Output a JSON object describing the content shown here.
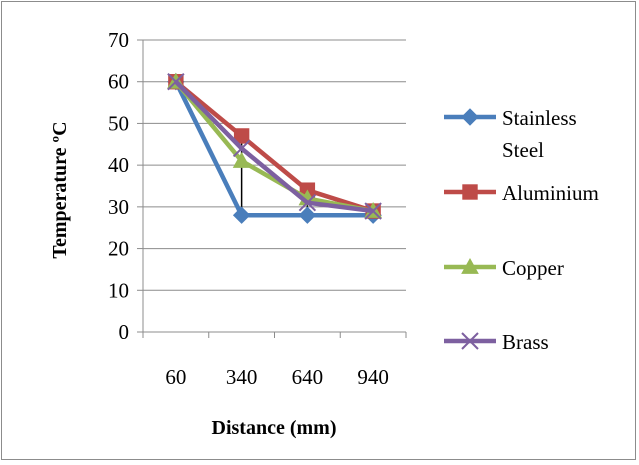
{
  "chart_data": {
    "type": "line",
    "title": "",
    "xlabel": "Distance (mm)",
    "ylabel": "Temperature",
    "ylabel_unit": "ºC",
    "categories": [
      "60",
      "340",
      "640",
      "940"
    ],
    "ylim": [
      0,
      70
    ],
    "yticks": [
      0,
      10,
      20,
      30,
      40,
      50,
      60,
      70
    ],
    "grid": "horizontal",
    "legend_position": "right",
    "series": [
      {
        "name": "Stainless Steel",
        "name_lines": [
          "Stainless",
          "Steel"
        ],
        "values": [
          60,
          28,
          28,
          28
        ],
        "color": "#4a7ebb",
        "marker": "diamond"
      },
      {
        "name": "Aluminium",
        "name_lines": [
          "Aluminium"
        ],
        "values": [
          60,
          47,
          34,
          29
        ],
        "color": "#be4b48",
        "marker": "square"
      },
      {
        "name": "Copper",
        "name_lines": [
          "Copper"
        ],
        "values": [
          60,
          41,
          32,
          29
        ],
        "color": "#98b954",
        "marker": "triangle"
      },
      {
        "name": "Brass",
        "name_lines": [
          "Brass"
        ],
        "values": [
          60,
          44,
          31,
          29
        ],
        "color": "#7d60a0",
        "marker": "x"
      }
    ],
    "error_bars": [
      {
        "category": "340",
        "low": 28,
        "high": 47
      },
      {
        "category": "640",
        "low": 28,
        "high": 34
      }
    ]
  }
}
